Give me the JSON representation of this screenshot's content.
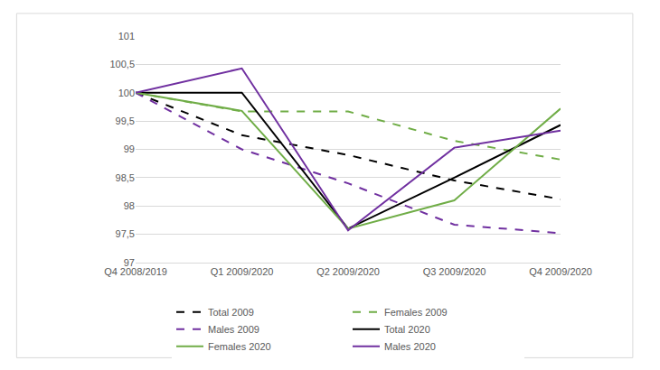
{
  "chart_data": {
    "type": "line",
    "categories": [
      "Q4 2008/2019",
      "Q1 2009/2020",
      "Q2 2009/2020",
      "Q3 2009/2020",
      "Q4 2009/2020"
    ],
    "series": [
      {
        "name": "Total 2009",
        "color": "#000000",
        "line_style": "dashed",
        "values": [
          100,
          99.25,
          98.9,
          98.45,
          98.12
        ]
      },
      {
        "name": "Females 2009",
        "color": "#70ad47",
        "line_style": "dashed",
        "values": [
          100,
          99.67,
          99.67,
          99.15,
          98.82
        ]
      },
      {
        "name": "Males 2009",
        "color": "#7030a0",
        "line_style": "dashed",
        "values": [
          100,
          99.0,
          98.4,
          97.67,
          97.52
        ]
      },
      {
        "name": "Total 2020",
        "color": "#000000",
        "line_style": "solid",
        "values": [
          100,
          100,
          97.6,
          98.5,
          99.43
        ]
      },
      {
        "name": "Females 2020",
        "color": "#70ad47",
        "line_style": "solid",
        "values": [
          100,
          99.68,
          97.6,
          98.1,
          99.72
        ]
      },
      {
        "name": "Males 2020",
        "color": "#7030a0",
        "line_style": "solid",
        "values": [
          100,
          100.43,
          97.57,
          99.03,
          99.33
        ]
      }
    ],
    "ylim": [
      97,
      101
    ],
    "yticks": [
      97,
      {
        "value": 97.5,
        "label": "97,5"
      },
      98,
      {
        "value": 98.5,
        "label": "98,5"
      },
      99,
      {
        "value": 99.5,
        "label": "99,5"
      },
      100,
      {
        "value": 100.5,
        "label": "100,5"
      },
      101
    ],
    "grid": true,
    "legend": "bottom"
  }
}
